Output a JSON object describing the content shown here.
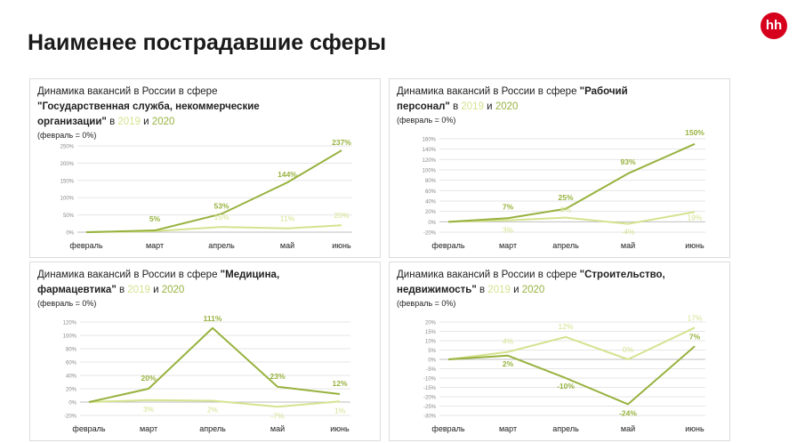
{
  "title": "Наименее пострадавшие сферы",
  "logo": "hh",
  "colors": {
    "s2019": "#d4e38f",
    "s2020": "#97b23e",
    "grid": "#e6e6e6",
    "axis": "#bfbfbf"
  },
  "panels": [
    {
      "title_prefix": "Динамика вакансий в России в сфере ",
      "sphere": "\"Государственная служба, некоммерческие организации\"",
      "mid": "  в ",
      "y1": "2019",
      "and": " и ",
      "y2": "2020",
      "note": "(февраль = 0%)"
    },
    {
      "title_prefix": "Динамика вакансий в России в сфере ",
      "sphere": "\"Рабочий персонал\"",
      "mid": "  в ",
      "y1": "2019",
      "and": " и ",
      "y2": "2020",
      "note": "(февраль = 0%)"
    },
    {
      "title_prefix": "Динамика вакансий в России в сфере ",
      "sphere": "\"Медицина, фармацевтика\"",
      "mid": "  в ",
      "y1": "2019",
      "and": " и ",
      "y2": "2020",
      "note": "(февраль = 0%)"
    },
    {
      "title_prefix": "Динамика вакансий в России в сфере ",
      "sphere": "\"Строительство, недвижимость\"",
      "mid": "  в ",
      "y1": "2019",
      "and": " и ",
      "y2": "2020",
      "note": "(февраль = 0%)"
    }
  ],
  "chart_data": [
    {
      "type": "line",
      "categories": [
        "февраль",
        "март",
        "апрель",
        "май",
        "июнь"
      ],
      "ylim": [
        0,
        250
      ],
      "yticks": [
        0,
        50,
        100,
        150,
        200,
        250
      ],
      "ytick_labels": [
        "0%",
        "50%",
        "100%",
        "150%",
        "200%",
        "250%"
      ],
      "series": [
        {
          "name": "2019",
          "values": [
            0,
            3,
            15,
            11,
            20
          ],
          "labels": [
            "",
            "",
            "15%",
            "11%",
            "20%"
          ]
        },
        {
          "name": "2020",
          "values": [
            0,
            5,
            53,
            144,
            237
          ],
          "labels": [
            "",
            "5%",
            "53%",
            "144%",
            "237%"
          ]
        }
      ]
    },
    {
      "type": "line",
      "categories": [
        "февраль",
        "март",
        "апрель",
        "май",
        "июнь"
      ],
      "ylim": [
        -20,
        160
      ],
      "yticks": [
        -20,
        0,
        20,
        40,
        60,
        80,
        100,
        120,
        140,
        160
      ],
      "ytick_labels": [
        "-20%",
        "0%",
        "20%",
        "40%",
        "60%",
        "80%",
        "100%",
        "120%",
        "140%",
        "160%"
      ],
      "series": [
        {
          "name": "2019",
          "values": [
            0,
            3,
            8,
            -4,
            19
          ],
          "labels": [
            "",
            "3%",
            "8%",
            "-4%",
            "19%"
          ]
        },
        {
          "name": "2020",
          "values": [
            0,
            7,
            25,
            93,
            150
          ],
          "labels": [
            "",
            "7%",
            "25%",
            "93%",
            "150%"
          ]
        }
      ]
    },
    {
      "type": "line",
      "categories": [
        "февраль",
        "март",
        "апрель",
        "май",
        "июнь"
      ],
      "ylim": [
        -20,
        120
      ],
      "yticks": [
        -20,
        0,
        20,
        40,
        60,
        80,
        100,
        120
      ],
      "ytick_labels": [
        "-20%",
        "0%",
        "20%",
        "40%",
        "60%",
        "80%",
        "100%",
        "120%"
      ],
      "series": [
        {
          "name": "2019",
          "values": [
            0,
            3,
            2,
            -7,
            1
          ],
          "labels": [
            "",
            "3%",
            "2%",
            "-7%",
            "1%"
          ]
        },
        {
          "name": "2020",
          "values": [
            0,
            20,
            111,
            23,
            12
          ],
          "labels": [
            "",
            "20%",
            "111%",
            "23%",
            "12%"
          ]
        }
      ]
    },
    {
      "type": "line",
      "categories": [
        "февраль",
        "март",
        "апрель",
        "май",
        "июнь"
      ],
      "ylim": [
        -30,
        20
      ],
      "yticks": [
        -30,
        -25,
        -20,
        -15,
        -10,
        -5,
        0,
        5,
        10,
        15,
        20
      ],
      "ytick_labels": [
        "-30%",
        "-25%",
        "-20%",
        "-15%",
        "-10%",
        "-5%",
        "0%",
        "5%",
        "10%",
        "15%",
        "20%"
      ],
      "series": [
        {
          "name": "2019",
          "values": [
            0,
            4,
            12,
            0,
            17
          ],
          "labels": [
            "",
            "4%",
            "12%",
            "0%",
            "17%"
          ]
        },
        {
          "name": "2020",
          "values": [
            0,
            2,
            -10,
            -24,
            7
          ],
          "labels": [
            "",
            "2%",
            "-10%",
            "-24%",
            "7%"
          ]
        }
      ]
    }
  ]
}
